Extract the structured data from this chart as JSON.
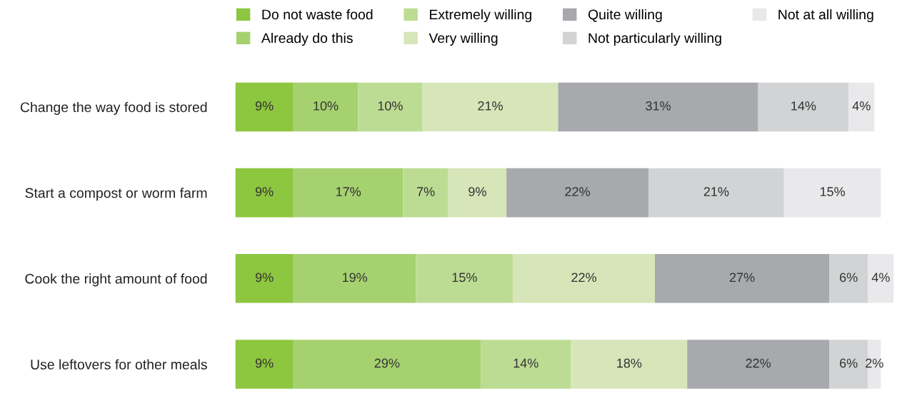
{
  "chart_data": {
    "type": "bar",
    "orientation": "horizontal",
    "stacked": true,
    "legend": "top",
    "grid": false,
    "tick_labels": "y",
    "categories": [
      "Change the way food is stored",
      "Start a compost or worm farm",
      "Cook the right amount of food",
      "Use leftovers for other meals"
    ],
    "series": [
      {
        "name": "Do not waste food",
        "color": "#8dc63f",
        "values": [
          9,
          9,
          9,
          9
        ],
        "value_labels": [
          "9%",
          "9%",
          "9%",
          "9%"
        ]
      },
      {
        "name": "Already do this",
        "color": "#a6d16f",
        "values": [
          10,
          17,
          19,
          29
        ],
        "value_labels": [
          "10%",
          "17%",
          "19%",
          "29%"
        ]
      },
      {
        "name": "Extremely willing",
        "color": "#bddc93",
        "values": [
          10,
          7,
          15,
          14
        ],
        "value_labels": [
          "10%",
          "7%",
          "15%",
          "14%"
        ]
      },
      {
        "name": "Very willing",
        "color": "#d6e6b9",
        "values": [
          21,
          9,
          22,
          18
        ],
        "value_labels": [
          "21%",
          "9%",
          "22%",
          "18%"
        ]
      },
      {
        "name": "Quite willing",
        "color": "#a7a9ac",
        "values": [
          31,
          22,
          27,
          22
        ],
        "value_labels": [
          "31%",
          "22%",
          "27%",
          "22%"
        ]
      },
      {
        "name": "Not particularly willing",
        "color": "#d1d3d4",
        "values": [
          14,
          21,
          6,
          6
        ],
        "value_labels": [
          "14%",
          "21%",
          "6%",
          "6%"
        ]
      },
      {
        "name": "Not at all willing",
        "color": "#e9e9eb",
        "values": [
          4,
          15,
          4,
          2
        ],
        "value_labels": [
          "4%",
          "15%",
          "4%",
          "2%"
        ]
      }
    ]
  }
}
